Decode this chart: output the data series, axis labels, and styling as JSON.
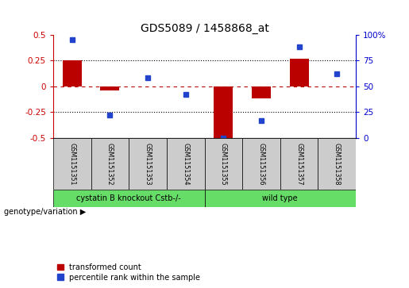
{
  "title": "GDS5089 / 1458868_at",
  "samples": [
    "GSM1151351",
    "GSM1151352",
    "GSM1151353",
    "GSM1151354",
    "GSM1151355",
    "GSM1151356",
    "GSM1151357",
    "GSM1151358"
  ],
  "red_bars": [
    0.25,
    -0.04,
    0.0,
    0.0,
    -0.5,
    -0.12,
    0.27,
    0.0
  ],
  "blue_dots": [
    95,
    22,
    58,
    42,
    0,
    17,
    88,
    62
  ],
  "group1_samples": 4,
  "group1_label": "cystatin B knockout Cstb-/-",
  "group2_label": "wild type",
  "group_color": "#66dd66",
  "group_row_label": "genotype/variation",
  "ylim_left": [
    -0.5,
    0.5
  ],
  "ylim_right": [
    0,
    100
  ],
  "yticks_left": [
    -0.5,
    -0.25,
    0.0,
    0.25,
    0.5
  ],
  "ytick_labels_left": [
    "-0.5",
    "-0.25",
    "0",
    "0.25",
    "0.5"
  ],
  "yticks_right": [
    0,
    25,
    50,
    75,
    100
  ],
  "ytick_labels_right": [
    "0",
    "25",
    "50",
    "75",
    "100%"
  ],
  "red_color": "#bb0000",
  "blue_color": "#2244cc",
  "bar_width": 0.5,
  "sample_box_color": "#cccccc",
  "legend_red": "transformed count",
  "legend_blue": "percentile rank within the sample",
  "bg_color": "#ffffff",
  "axis_color_left": "#cc0000",
  "axis_color_right": "#0000cc"
}
